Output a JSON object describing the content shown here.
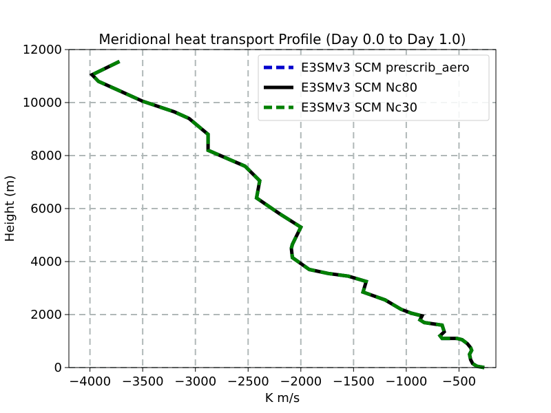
{
  "chart_data": {
    "type": "line",
    "title": "Meridional heat transport Profile (Day 0.0 to Day 1.0)",
    "xlabel": "K m/s",
    "ylabel": "Height (m)",
    "xlim": [
      -4200,
      -150
    ],
    "ylim": [
      0,
      12000
    ],
    "xticks": [
      -4000,
      -3500,
      -3000,
      -2500,
      -2000,
      -1500,
      -1000,
      -500
    ],
    "yticks": [
      0,
      2000,
      4000,
      6000,
      8000,
      10000,
      12000
    ],
    "xtick_labels": [
      "−4000",
      "−3500",
      "−3000",
      "−2500",
      "−2000",
      "−1500",
      "−1000",
      "−500"
    ],
    "ytick_labels": [
      "0",
      "2000",
      "4000",
      "6000",
      "8000",
      "10000",
      "12000"
    ],
    "grid": true,
    "legend_position": "top-right",
    "series": [
      {
        "name": "E3SMv3 SCM prescrib_aero",
        "color": "#0000cc",
        "style": "dashed",
        "x": [
          -260,
          -330,
          -370,
          -390,
          -400,
          -380,
          -390,
          -420,
          -470,
          -520,
          -660,
          -680,
          -640,
          -660,
          -830,
          -870,
          -850,
          -950,
          -1050,
          -1200,
          -1410,
          -1380,
          -1550,
          -1740,
          -1920,
          -2080,
          -2090,
          -2080,
          -2000,
          -2200,
          -2420,
          -2390,
          -2530,
          -2880,
          -2880,
          -3060,
          -3200,
          -3500,
          -3750,
          -3920,
          -3980,
          -3720
        ],
        "y": [
          0,
          50,
          150,
          300,
          500,
          650,
          750,
          900,
          1050,
          1100,
          1100,
          1200,
          1350,
          1600,
          1700,
          1800,
          1950,
          2050,
          2200,
          2550,
          2850,
          3250,
          3450,
          3550,
          3700,
          4150,
          4500,
          4650,
          5300,
          5800,
          6400,
          7050,
          7600,
          8200,
          8800,
          9400,
          9650,
          10050,
          10500,
          10800,
          11050,
          11550
        ]
      },
      {
        "name": "E3SMv3 SCM Nc80",
        "color": "#000000",
        "style": "solid",
        "x": [
          -260,
          -330,
          -370,
          -390,
          -400,
          -380,
          -390,
          -420,
          -470,
          -520,
          -660,
          -680,
          -640,
          -660,
          -830,
          -870,
          -850,
          -950,
          -1050,
          -1200,
          -1410,
          -1380,
          -1550,
          -1740,
          -1920,
          -2080,
          -2090,
          -2080,
          -2000,
          -2200,
          -2420,
          -2390,
          -2530,
          -2880,
          -2880,
          -3060,
          -3200,
          -3500,
          -3750,
          -3920,
          -3980,
          -3720
        ],
        "y": [
          0,
          50,
          150,
          300,
          500,
          650,
          750,
          900,
          1050,
          1100,
          1100,
          1200,
          1350,
          1600,
          1700,
          1800,
          1950,
          2050,
          2200,
          2550,
          2850,
          3250,
          3450,
          3550,
          3700,
          4150,
          4500,
          4650,
          5300,
          5800,
          6400,
          7050,
          7600,
          8200,
          8800,
          9400,
          9650,
          10050,
          10500,
          10800,
          11050,
          11550
        ]
      },
      {
        "name": "E3SMv3 SCM Nc30",
        "color": "#008000",
        "style": "dashed",
        "x": [
          -260,
          -330,
          -370,
          -390,
          -400,
          -380,
          -390,
          -420,
          -470,
          -520,
          -660,
          -680,
          -640,
          -660,
          -830,
          -870,
          -850,
          -950,
          -1050,
          -1200,
          -1410,
          -1380,
          -1550,
          -1740,
          -1920,
          -2080,
          -2090,
          -2080,
          -2000,
          -2200,
          -2420,
          -2390,
          -2530,
          -2880,
          -2880,
          -3060,
          -3200,
          -3500,
          -3750,
          -3920,
          -3980,
          -3720
        ],
        "y": [
          0,
          50,
          150,
          300,
          500,
          650,
          750,
          900,
          1050,
          1100,
          1100,
          1200,
          1350,
          1600,
          1700,
          1800,
          1950,
          2050,
          2200,
          2550,
          2850,
          3250,
          3450,
          3550,
          3700,
          4150,
          4500,
          4650,
          5300,
          5800,
          6400,
          7050,
          7600,
          8200,
          8800,
          9400,
          9650,
          10050,
          10500,
          10800,
          11050,
          11550
        ]
      }
    ]
  }
}
